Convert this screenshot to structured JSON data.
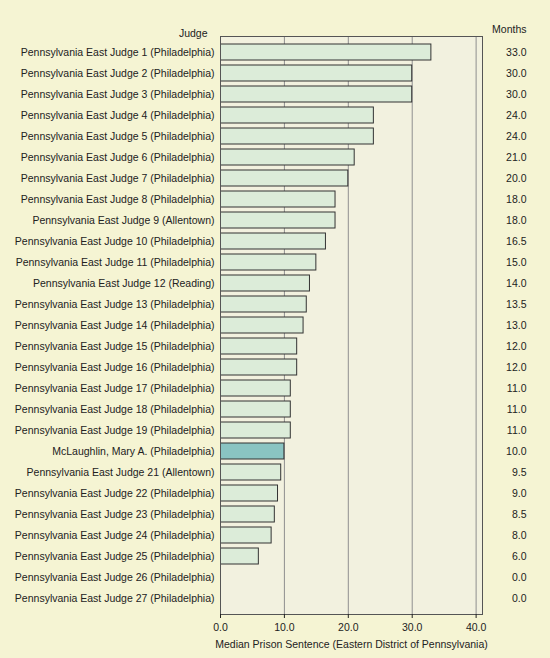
{
  "chart_data": {
    "type": "bar",
    "orientation": "horizontal",
    "ylabel": "Judge",
    "xlabel": "Median Prison Sentence (Eastern District of Pennsylvania)",
    "annotations": [
      "Months"
    ],
    "categories": [
      "Pennsylvania East Judge 1 (Philadelphia)",
      "Pennsylvania East Judge 2 (Philadelphia)",
      "Pennsylvania East Judge 3 (Philadelphia)",
      "Pennsylvania East Judge 4 (Philadelphia)",
      "Pennsylvania East Judge 5 (Philadelphia)",
      "Pennsylvania East Judge 6 (Philadelphia)",
      "Pennsylvania East Judge 7 (Philadelphia)",
      "Pennsylvania East Judge 8 (Philadelphia)",
      "Pennsylvania East Judge 9 (Allentown)",
      "Pennsylvania East Judge 10 (Philadelphia)",
      "Pennsylvania East Judge 11 (Philadelphia)",
      "Pennsylvania East Judge 12 (Reading)",
      "Pennsylvania East Judge 13 (Philadelphia)",
      "Pennsylvania East Judge 14 (Philadelphia)",
      "Pennsylvania East Judge 15 (Philadelphia)",
      "Pennsylvania East Judge 16 (Philadelphia)",
      "Pennsylvania East Judge 17 (Philadelphia)",
      "Pennsylvania East Judge 18 (Philadelphia)",
      "Pennsylvania East Judge 19 (Philadelphia)",
      "McLaughlin, Mary A. (Philadelphia)",
      "Pennsylvania East Judge 21 (Allentown)",
      "Pennsylvania East Judge 22 (Philadelphia)",
      "Pennsylvania East Judge 23 (Philadelphia)",
      "Pennsylvania East Judge 24 (Philadelphia)",
      "Pennsylvania East Judge 25 (Philadelphia)",
      "Pennsylvania East Judge 26 (Philadelphia)",
      "Pennsylvania East Judge 27 (Philadelphia)"
    ],
    "values": [
      33,
      30,
      30,
      24,
      24,
      21,
      20,
      18,
      18,
      16.5,
      15,
      14,
      13.5,
      13,
      12,
      12,
      11,
      11,
      11,
      10,
      9.5,
      9,
      8.5,
      8,
      6,
      0,
      0
    ],
    "value_labels": [
      "33.0",
      "30.0",
      "30.0",
      "24.0",
      "24.0",
      "21.0",
      "20.0",
      "18.0",
      "18.0",
      "16.5",
      "15.0",
      "14.0",
      "13.5",
      "13.0",
      "12.0",
      "12.0",
      "11.0",
      "11.0",
      "11.0",
      "10.0",
      "9.5",
      "9.0",
      "8.5",
      "8.0",
      "6.0",
      "0.0",
      "0.0"
    ],
    "data_labels": true,
    "colors": [
      "#dcecd9",
      "#dcecd9",
      "#dcecd9",
      "#dcecd9",
      "#dcecd9",
      "#dcecd9",
      "#dcecd9",
      "#dcecd9",
      "#dcecd9",
      "#dcecd9",
      "#dcecd9",
      "#dcecd9",
      "#dcecd9",
      "#dcecd9",
      "#dcecd9",
      "#dcecd9",
      "#dcecd9",
      "#dcecd9",
      "#dcecd9",
      "#8ac4c2",
      "#dcecd9",
      "#dcecd9",
      "#dcecd9",
      "#dcecd9",
      "#dcecd9",
      "#dcecd9",
      "#dcecd9"
    ],
    "xlim": [
      0,
      41
    ],
    "xticks": [
      {
        "value": 0,
        "label": "0.0"
      },
      {
        "value": 10,
        "label": "10.0"
      },
      {
        "value": 20,
        "label": "20.0"
      },
      {
        "value": 30,
        "label": "30.0"
      },
      {
        "value": 40,
        "label": "40.0"
      }
    ],
    "grid": true
  }
}
